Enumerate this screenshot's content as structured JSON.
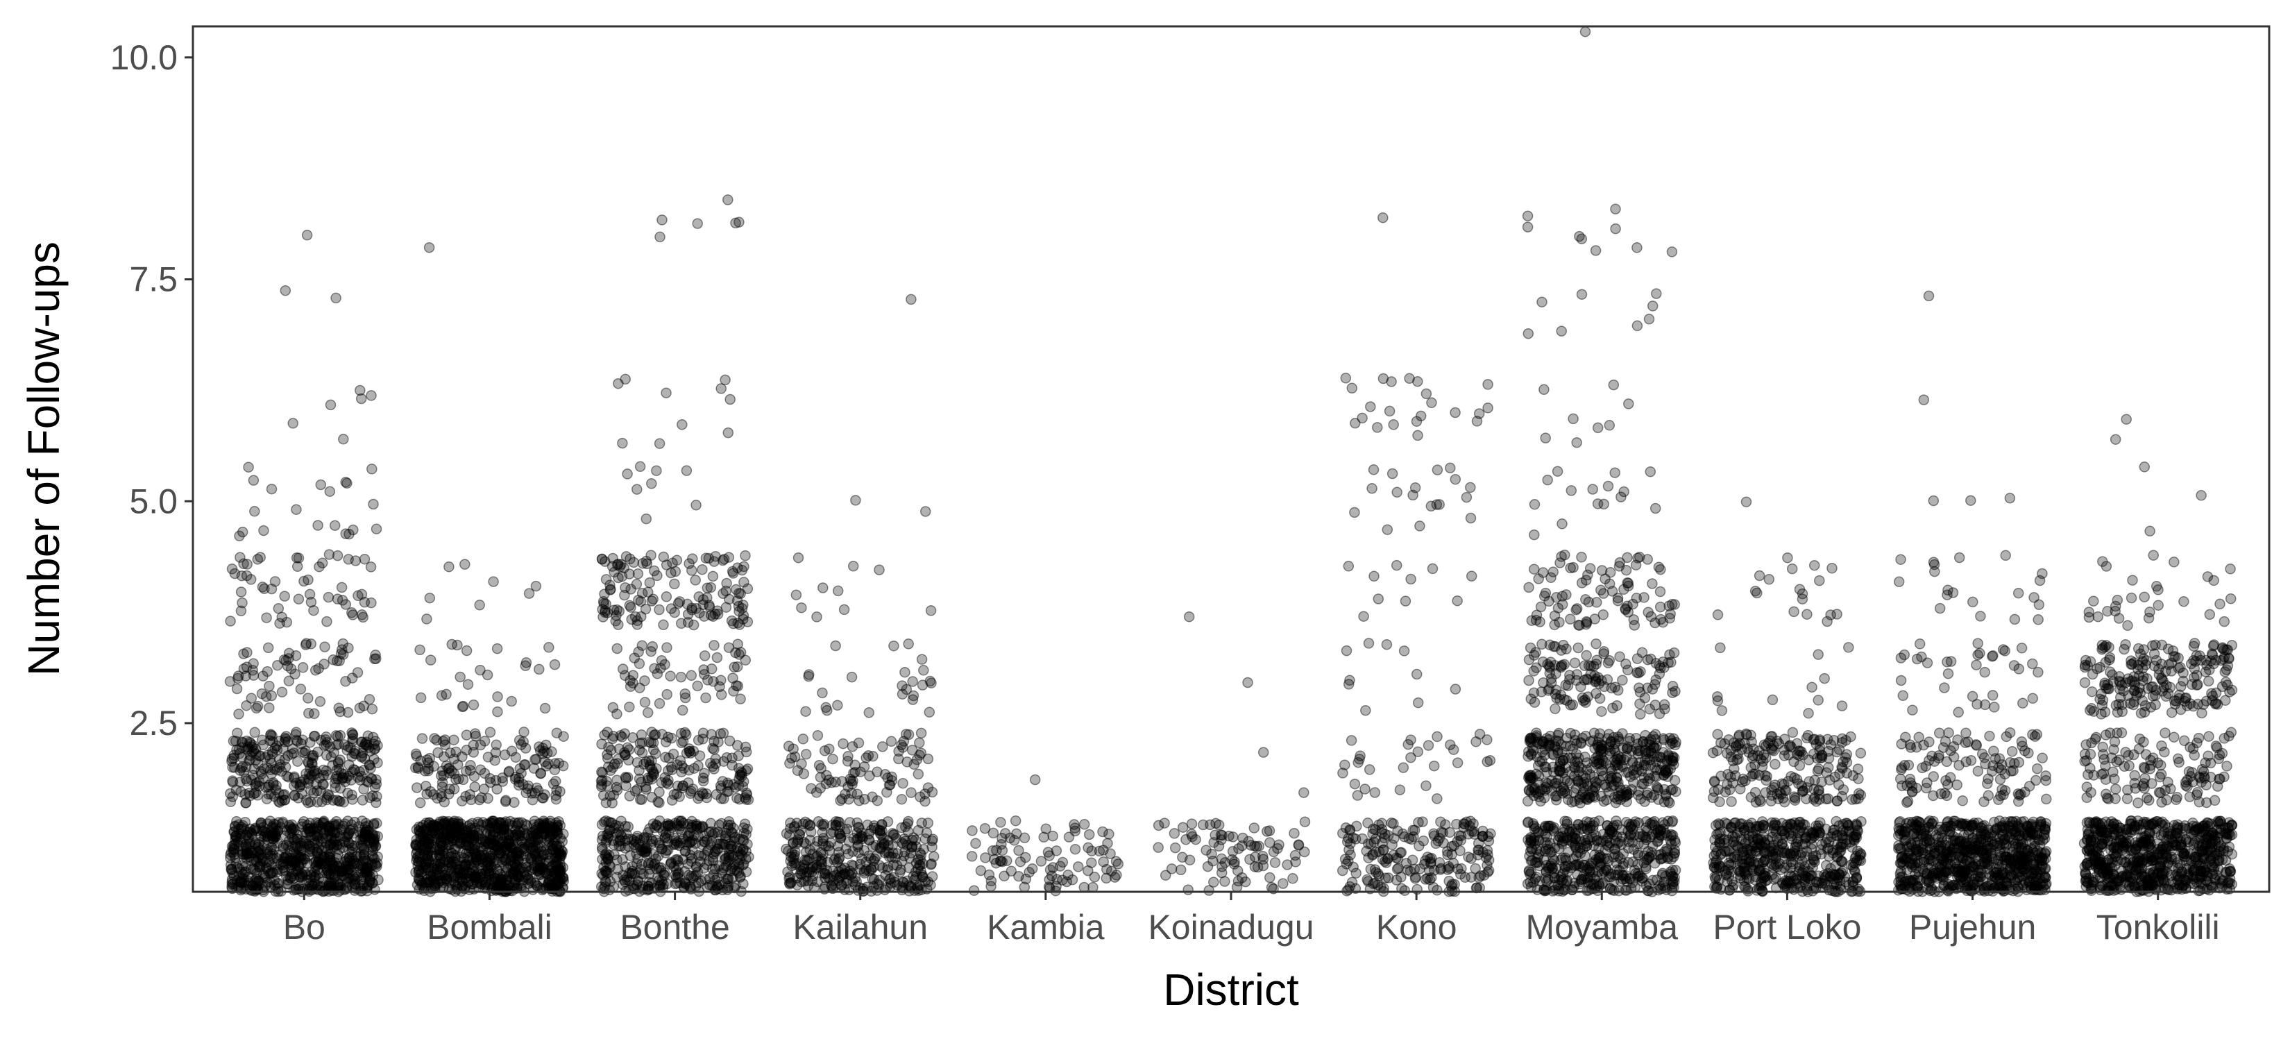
{
  "chart_data": {
    "type": "scatter",
    "subtype": "jitter strip plot",
    "xlabel": "District",
    "ylabel": "Number of Follow-ups",
    "categories": [
      "Bo",
      "Bombali",
      "Bonthe",
      "Kailahun",
      "Kambia",
      "Koinadugu",
      "Kono",
      "Moyamba",
      "Port Loko",
      "Pujehun",
      "Tonkolili"
    ],
    "ylim": [
      0.6,
      10.35
    ],
    "yticks": [
      "2.5",
      "5.0",
      "7.5",
      "10.0"
    ],
    "ytick_values": [
      2.5,
      5.0,
      7.5,
      10.0
    ],
    "grid": false,
    "legend": "none",
    "point_color": "#000000",
    "point_alpha": 0.3,
    "jitter": {
      "width": 0.4,
      "height": 0.4
    },
    "counts_by_followups": {
      "Bo": {
        "1": 700,
        "2": 300,
        "3": 70,
        "4": 55,
        "5": 20,
        "6": 6,
        "7": 2,
        "8": 1
      },
      "Bombali": {
        "1": 900,
        "2": 150,
        "3": 25,
        "4": 8,
        "8": 1
      },
      "Bonthe": {
        "1": 420,
        "2": 200,
        "3": 60,
        "4": 140,
        "5": 8,
        "6": 10,
        "8": 6
      },
      "Kailahun": {
        "1": 350,
        "2": 90,
        "3": 25,
        "4": 10,
        "5": 2,
        "7": 1
      },
      "Kambia": {
        "1": 90,
        "2": 1
      },
      "Koinadugu": {
        "1": 85,
        "2": 2,
        "3": 1,
        "4": 1
      },
      "Kono": {
        "1": 200,
        "2": 30,
        "3": 10,
        "4": 10,
        "5": 18,
        "6": 22,
        "8": 1
      },
      "Moyamba": {
        "1": 450,
        "2": 400,
        "3": 130,
        "4": 90,
        "5": 15,
        "6": 8,
        "7": 8,
        "8": 9,
        "10": 1
      },
      "Port Loko": {
        "1": 500,
        "2": 200,
        "3": 12,
        "4": 18,
        "5": 1
      },
      "Pujehun": {
        "1": 750,
        "2": 110,
        "3": 35,
        "4": 20,
        "5": 3,
        "6": 1,
        "7": 1
      },
      "Tonkolili": {
        "1": 700,
        "2": 130,
        "3": 200,
        "4": 30,
        "5": 3,
        "6": 2
      }
    }
  }
}
